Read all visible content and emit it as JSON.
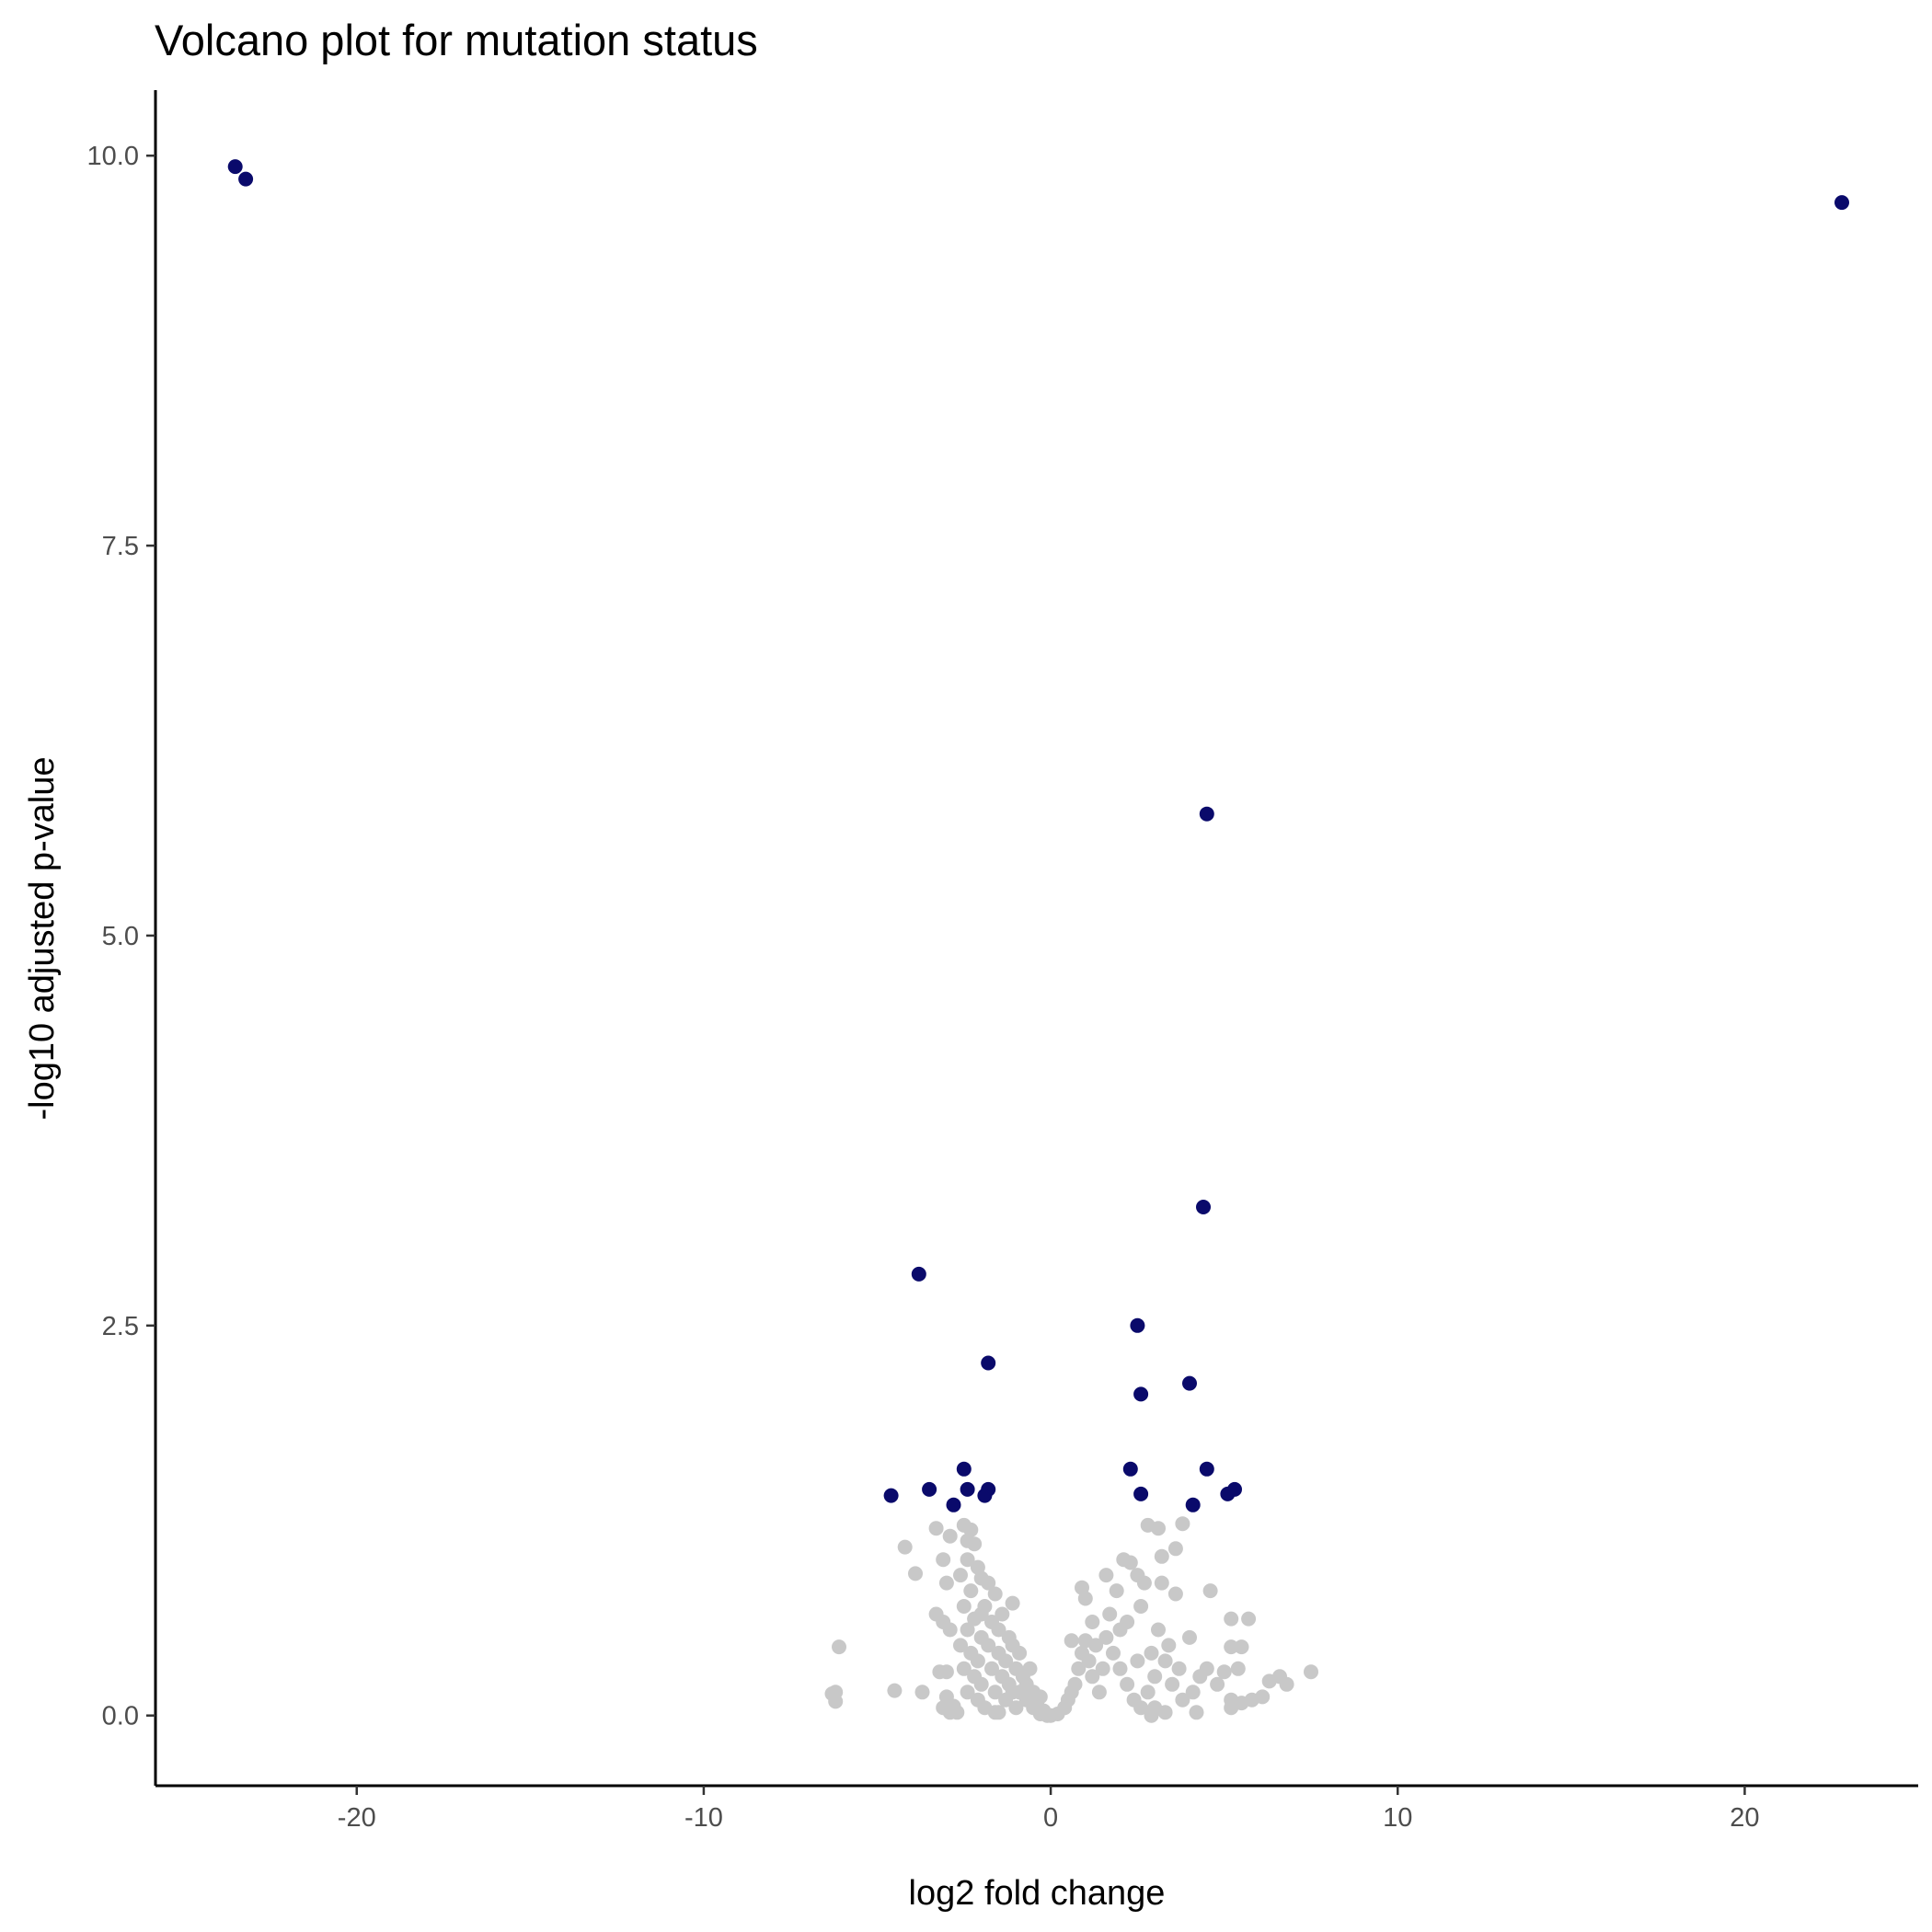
{
  "chart_data": {
    "type": "scatter",
    "title": "Volcano plot for mutation status",
    "xlabel": "log2 fold change",
    "ylabel": "-log10 adjusted p-value",
    "xlim": [
      -25.8,
      25
    ],
    "ylim": [
      -0.45,
      10.42
    ],
    "xticks": [
      -20,
      -10,
      0,
      10,
      20
    ],
    "xtick_labels": [
      "-20",
      "-10",
      "0",
      "10",
      "20"
    ],
    "yticks": [
      0,
      2.5,
      5,
      7.5,
      10
    ],
    "ytick_labels": [
      "0.0",
      "2.5",
      "5.0",
      "7.5",
      "10.0"
    ],
    "grid": false,
    "legend": "none",
    "colors": {
      "significant": "#0a0a6b",
      "not_significant": "#c8c8c8"
    },
    "series": [
      {
        "key": "not_significant",
        "points": [
          [
            -6.2,
            0.15
          ],
          [
            -6.2,
            0.09
          ],
          [
            -6.1,
            0.44
          ],
          [
            -6.3,
            0.14
          ],
          [
            -4.5,
            0.16
          ],
          [
            -3.7,
            0.15
          ],
          [
            -4.2,
            1.08
          ],
          [
            -3.9,
            0.91
          ],
          [
            -3.3,
            1.2
          ],
          [
            -3.1,
            1.0
          ],
          [
            -3.0,
            0.85
          ],
          [
            -3.3,
            0.65
          ],
          [
            -3.1,
            0.6
          ],
          [
            -2.9,
            0.55
          ],
          [
            -3.0,
            0.28
          ],
          [
            -3.0,
            0.12
          ],
          [
            -2.8,
            0.06
          ],
          [
            -2.9,
            0.02
          ],
          [
            -2.5,
            1.22
          ],
          [
            -2.3,
            1.19
          ],
          [
            -2.2,
            1.1
          ],
          [
            -2.4,
            1.0
          ],
          [
            -2.1,
            0.95
          ],
          [
            -2.6,
            0.9
          ],
          [
            -2.0,
            0.88
          ],
          [
            -1.8,
            0.85
          ],
          [
            -2.3,
            0.8
          ],
          [
            -1.6,
            0.78
          ],
          [
            -2.5,
            0.7
          ],
          [
            -1.9,
            0.7
          ],
          [
            -1.4,
            0.65
          ],
          [
            -2.2,
            0.62
          ],
          [
            -1.7,
            0.6
          ],
          [
            -2.4,
            0.55
          ],
          [
            -1.5,
            0.55
          ],
          [
            -2.0,
            0.5
          ],
          [
            -1.2,
            0.5
          ],
          [
            -2.6,
            0.45
          ],
          [
            -1.8,
            0.45
          ],
          [
            -1.1,
            0.45
          ],
          [
            -2.3,
            0.4
          ],
          [
            -1.5,
            0.4
          ],
          [
            -0.9,
            0.4
          ],
          [
            -2.1,
            0.35
          ],
          [
            -1.3,
            0.35
          ],
          [
            -2.5,
            0.3
          ],
          [
            -1.7,
            0.3
          ],
          [
            -1.0,
            0.3
          ],
          [
            -2.2,
            0.25
          ],
          [
            -1.4,
            0.25
          ],
          [
            -0.8,
            0.25
          ],
          [
            -2.0,
            0.2
          ],
          [
            -1.2,
            0.2
          ],
          [
            -0.7,
            0.2
          ],
          [
            -2.4,
            0.15
          ],
          [
            -1.6,
            0.15
          ],
          [
            -0.9,
            0.15
          ],
          [
            -0.5,
            0.15
          ],
          [
            -2.1,
            0.1
          ],
          [
            -1.3,
            0.1
          ],
          [
            -0.7,
            0.1
          ],
          [
            -0.4,
            0.08
          ],
          [
            -1.9,
            0.05
          ],
          [
            -1.0,
            0.05
          ],
          [
            -0.5,
            0.05
          ],
          [
            -0.2,
            0.03
          ],
          [
            -2.7,
            0.02
          ],
          [
            -1.5,
            0.02
          ],
          [
            -0.3,
            0.01
          ],
          [
            -0.1,
            0.0
          ],
          [
            0.0,
            0.0
          ],
          [
            0.2,
            0.01
          ],
          [
            0.4,
            0.05
          ],
          [
            0.5,
            0.1
          ],
          [
            0.6,
            0.15
          ],
          [
            0.7,
            0.2
          ],
          [
            0.8,
            0.3
          ],
          [
            0.9,
            0.4
          ],
          [
            0.6,
            0.48
          ],
          [
            1.0,
            0.48
          ],
          [
            1.1,
            0.35
          ],
          [
            1.2,
            0.25
          ],
          [
            1.4,
            0.15
          ],
          [
            1.5,
            0.3
          ],
          [
            1.3,
            0.45
          ],
          [
            1.6,
            0.5
          ],
          [
            1.8,
            0.4
          ],
          [
            2.0,
            0.3
          ],
          [
            2.2,
            0.2
          ],
          [
            2.4,
            0.1
          ],
          [
            2.6,
            0.05
          ],
          [
            2.8,
            0.15
          ],
          [
            3.0,
            0.05
          ],
          [
            1.0,
            0.75
          ],
          [
            0.9,
            0.82
          ],
          [
            1.6,
            0.9
          ],
          [
            1.9,
            0.8
          ],
          [
            2.1,
            1.0
          ],
          [
            2.3,
            0.98
          ],
          [
            2.5,
            0.9
          ],
          [
            2.7,
            0.85
          ],
          [
            2.8,
            1.22
          ],
          [
            3.1,
            1.2
          ],
          [
            3.2,
            1.02
          ],
          [
            3.6,
            1.07
          ],
          [
            3.8,
            1.23
          ],
          [
            3.2,
            0.85
          ],
          [
            3.6,
            0.78
          ],
          [
            2.6,
            0.7
          ],
          [
            2.2,
            0.6
          ],
          [
            3.1,
            0.55
          ],
          [
            3.4,
            0.45
          ],
          [
            2.9,
            0.4
          ],
          [
            3.3,
            0.35
          ],
          [
            3.7,
            0.3
          ],
          [
            4.0,
            0.5
          ],
          [
            4.3,
            0.25
          ],
          [
            4.6,
            0.8
          ],
          [
            4.5,
            0.3
          ],
          [
            4.1,
            0.15
          ],
          [
            3.5,
            0.2
          ],
          [
            3.8,
            0.1
          ],
          [
            3.0,
            0.25
          ],
          [
            2.5,
            0.35
          ],
          [
            2.0,
            0.55
          ],
          [
            1.7,
            0.65
          ],
          [
            1.2,
            0.6
          ],
          [
            5.2,
            0.62
          ],
          [
            5.7,
            0.62
          ],
          [
            5.2,
            0.44
          ],
          [
            5.5,
            0.44
          ],
          [
            5.4,
            0.3
          ],
          [
            5.0,
            0.28
          ],
          [
            4.8,
            0.2
          ],
          [
            5.2,
            0.1
          ],
          [
            5.5,
            0.08
          ],
          [
            5.2,
            0.05
          ],
          [
            6.3,
            0.22
          ],
          [
            6.6,
            0.25
          ],
          [
            6.8,
            0.2
          ],
          [
            7.5,
            0.28
          ],
          [
            6.1,
            0.12
          ],
          [
            5.8,
            0.1
          ],
          [
            4.2,
            0.02
          ],
          [
            3.3,
            0.02
          ],
          [
            2.9,
            0.0
          ],
          [
            -3.1,
            0.05
          ],
          [
            -3.2,
            0.28
          ],
          [
            -2.0,
            0.65
          ],
          [
            -1.1,
            0.72
          ],
          [
            -2.9,
            1.15
          ],
          [
            -2.4,
            1.12
          ],
          [
            -1.6,
            0.02
          ],
          [
            -1.1,
            0.15
          ],
          [
            -0.6,
            0.3
          ],
          [
            -0.3,
            0.12
          ]
        ]
      },
      {
        "key": "significant",
        "points": [
          [
            -23.5,
            9.93
          ],
          [
            -23.2,
            9.85
          ],
          [
            22.8,
            9.7
          ],
          [
            4.5,
            5.78
          ],
          [
            4.4,
            3.26
          ],
          [
            -3.8,
            2.83
          ],
          [
            2.5,
            2.5
          ],
          [
            -1.8,
            2.26
          ],
          [
            4.0,
            2.13
          ],
          [
            2.6,
            2.06
          ],
          [
            -2.5,
            1.58
          ],
          [
            2.3,
            1.58
          ],
          [
            4.5,
            1.58
          ],
          [
            -3.5,
            1.45
          ],
          [
            -2.4,
            1.45
          ],
          [
            -1.8,
            1.45
          ],
          [
            5.3,
            1.45
          ],
          [
            -4.6,
            1.41
          ],
          [
            2.6,
            1.42
          ],
          [
            5.1,
            1.42
          ],
          [
            -1.9,
            1.41
          ],
          [
            -2.8,
            1.35
          ],
          [
            4.1,
            1.35
          ]
        ]
      }
    ]
  }
}
